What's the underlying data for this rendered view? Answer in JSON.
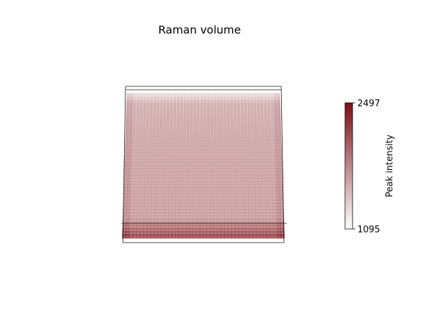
{
  "chart_data": {
    "type": "scatter",
    "projection": "3d",
    "title": "Raman volume",
    "xlabel": "",
    "ylabel": "",
    "zlabel": "",
    "axes_visible": false,
    "grid": false,
    "marker": "square",
    "grid_points": {
      "nx": 46,
      "ny": 46
    },
    "value_range": [
      1095,
      2497
    ],
    "typical_value": 1750,
    "edge_value": 2300,
    "colormap": {
      "low": "#ffffff",
      "high": "#7b0f14"
    },
    "colorbar": {
      "label": "Peak intensity",
      "min": 1095,
      "max": 2497,
      "ticks": [
        "2497",
        "1095"
      ]
    }
  }
}
